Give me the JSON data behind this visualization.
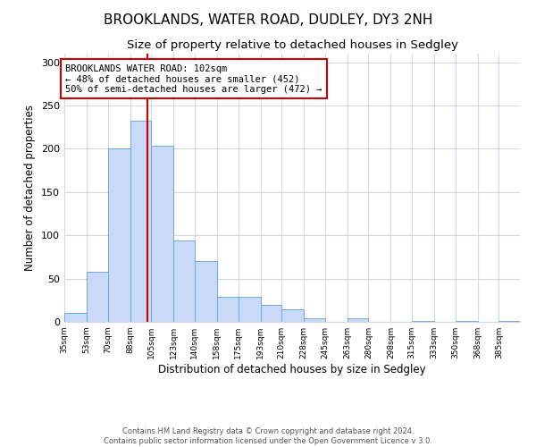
{
  "title": "BROOKLANDS, WATER ROAD, DUDLEY, DY3 2NH",
  "subtitle": "Size of property relative to detached houses in Sedgley",
  "xlabel": "Distribution of detached houses by size in Sedgley",
  "ylabel": "Number of detached properties",
  "bins": [
    "35sqm",
    "53sqm",
    "70sqm",
    "88sqm",
    "105sqm",
    "123sqm",
    "140sqm",
    "158sqm",
    "175sqm",
    "193sqm",
    "210sqm",
    "228sqm",
    "245sqm",
    "263sqm",
    "280sqm",
    "298sqm",
    "315sqm",
    "333sqm",
    "350sqm",
    "368sqm",
    "385sqm"
  ],
  "bin_edges": [
    35,
    53,
    70,
    88,
    105,
    123,
    140,
    158,
    175,
    193,
    210,
    228,
    245,
    263,
    280,
    298,
    315,
    333,
    350,
    368,
    385
  ],
  "values": [
    10,
    58,
    200,
    233,
    204,
    94,
    70,
    29,
    29,
    20,
    14,
    4,
    0,
    4,
    0,
    0,
    1,
    0,
    1,
    0,
    1
  ],
  "bar_color": "#c9daf8",
  "bar_edge_color": "#6fa8dc",
  "vline_x": 102,
  "vline_color": "#cc0000",
  "annotation_title": "BROOKLANDS WATER ROAD: 102sqm",
  "annotation_line1": "← 48% of detached houses are smaller (452)",
  "annotation_line2": "50% of semi-detached houses are larger (472) →",
  "annotation_box_color": "#ffffff",
  "annotation_box_edge_color": "#cc0000",
  "ylim": [
    0,
    310
  ],
  "yticks": [
    0,
    50,
    100,
    150,
    200,
    250,
    300
  ],
  "footer1": "Contains HM Land Registry data © Crown copyright and database right 2024.",
  "footer2": "Contains public sector information licensed under the Open Government Licence v 3.0.",
  "background_color": "#ffffff",
  "grid_color": "#d0d8e8",
  "title_fontsize": 11,
  "subtitle_fontsize": 9.5
}
